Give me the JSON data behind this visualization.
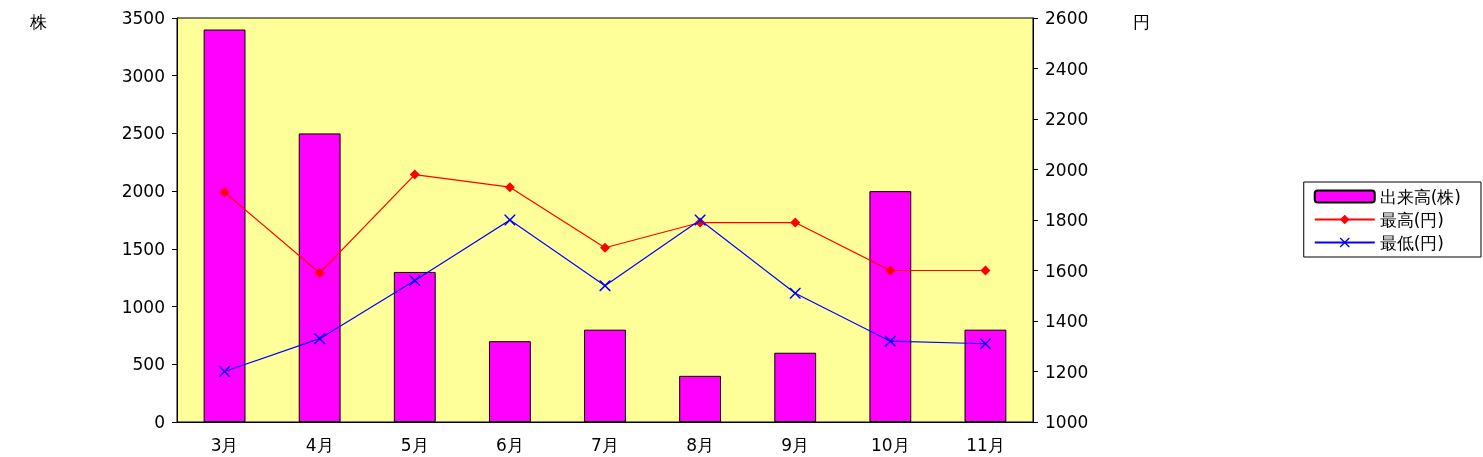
{
  "chart_data": {
    "type": "bar",
    "categories": [
      "3月",
      "4月",
      "5月",
      "6月",
      "7月",
      "8月",
      "9月",
      "10月",
      "11月"
    ],
    "ylabel": "株",
    "y2label": "円",
    "series": [
      {
        "name": "出来高(株)",
        "color": "#ff00ff",
        "values": [
          3400,
          2500,
          1300,
          700,
          800,
          400,
          600,
          2000,
          800
        ]
      },
      {
        "name": "最高(円)",
        "type": "line",
        "axis": "y2",
        "color": "#ff0000",
        "marker": "diamond",
        "values": [
          1910,
          1590,
          1980,
          1930,
          1690,
          1790,
          1790,
          1600,
          1600
        ]
      },
      {
        "name": "最低(円)",
        "type": "line",
        "axis": "y2",
        "color": "#0000ff",
        "marker": "cross",
        "values": [
          1200,
          1330,
          1560,
          1800,
          1540,
          1800,
          1510,
          1320,
          1310
        ]
      }
    ],
    "ylim": [
      0,
      3500
    ],
    "yticks": [
      0,
      500,
      1000,
      1500,
      2000,
      2500,
      3000,
      3500
    ],
    "y2lim": [
      1000,
      2600
    ],
    "y2ticks": [
      1000,
      1200,
      1400,
      1600,
      1800,
      2000,
      2200,
      2400,
      2600
    ],
    "grid": false,
    "legend": "right"
  }
}
